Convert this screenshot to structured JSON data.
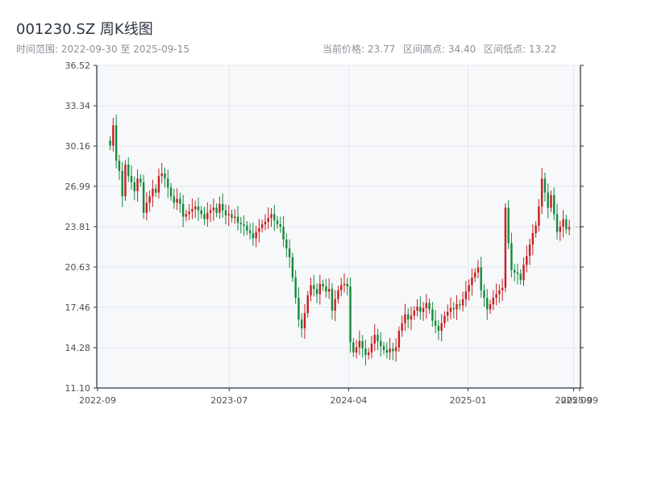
{
  "header": {
    "title": "001230.SZ 周K线图",
    "subtitle": "时间范围: 2022-09-30 至 2025-09-15",
    "current_price": "当前价格: 23.77",
    "range_high": "区间高点: 34.40",
    "range_low": "区间低点: 13.22"
  },
  "colors": {
    "up": "#c81e1e",
    "down": "#15893c",
    "plot_bg": "#f6f8fa",
    "grid": "#e4e7ec",
    "axis": "#2b3440",
    "price_line": "#999999"
  },
  "chart_data": {
    "type": "candlestick",
    "ylim": [
      11.1,
      36.52
    ],
    "y_ticks": [
      "36.52",
      "33.34",
      "30.16",
      "26.99",
      "23.81",
      "20.63",
      "17.46",
      "14.28",
      "11.10"
    ],
    "x_ticks": [
      {
        "date": "2022-09",
        "label": "2022-09"
      },
      {
        "date": "2023-07",
        "label": "2023-07"
      },
      {
        "date": "2024-04",
        "label": "2024-04"
      },
      {
        "date": "2025-01",
        "label": "2025-01"
      },
      {
        "date": "2025-09",
        "label": "2025-09"
      },
      {
        "date": "2025-09-15",
        "label": "2025-09"
      }
    ],
    "current_price": 23.77,
    "start_date": "2022-09-30",
    "week_closes": [
      30.2,
      31.8,
      29.0,
      28.2,
      26.2,
      28.7,
      27.8,
      27.3,
      26.6,
      27.6,
      27.3,
      24.9,
      25.7,
      26.2,
      26.8,
      26.5,
      27.8,
      28.0,
      27.6,
      26.9,
      26.2,
      25.7,
      26.0,
      25.6,
      24.6,
      24.8,
      25.0,
      25.2,
      25.4,
      25.1,
      24.8,
      24.4,
      24.9,
      25.1,
      25.3,
      24.9,
      25.6,
      25.1,
      24.7,
      24.8,
      24.5,
      24.6,
      24.1,
      24.0,
      23.9,
      23.5,
      23.3,
      22.9,
      23.4,
      23.7,
      24.0,
      24.2,
      24.5,
      24.8,
      24.3,
      24.0,
      23.8,
      22.8,
      22.1,
      21.4,
      19.8,
      18.2,
      16.5,
      15.8,
      17.0,
      18.4,
      19.2,
      18.9,
      18.5,
      19.3,
      19.1,
      18.7,
      18.9,
      17.2,
      18.1,
      18.8,
      19.2,
      19.3,
      19.1,
      14.7,
      13.9,
      14.3,
      14.8,
      14.2,
      13.7,
      13.9,
      14.6,
      15.3,
      14.8,
      14.4,
      14.1,
      13.9,
      14.2,
      14.0,
      14.3,
      15.6,
      16.2,
      16.9,
      16.5,
      16.8,
      17.2,
      17.5,
      17.1,
      17.4,
      17.8,
      17.3,
      16.4,
      16.0,
      15.6,
      16.2,
      16.8,
      17.1,
      17.4,
      17.3,
      17.7,
      17.6,
      18.1,
      18.7,
      19.2,
      19.8,
      20.2,
      20.6,
      18.8,
      18.2,
      17.3,
      17.7,
      18.2,
      18.5,
      18.8,
      19.0,
      25.3,
      22.5,
      20.4,
      20.2,
      20.1,
      19.6,
      20.8,
      21.5,
      22.4,
      23.3,
      23.9,
      25.4,
      27.6,
      26.5,
      25.3,
      26.3,
      24.8,
      23.4,
      23.8,
      24.4,
      23.6,
      23.77
    ]
  }
}
